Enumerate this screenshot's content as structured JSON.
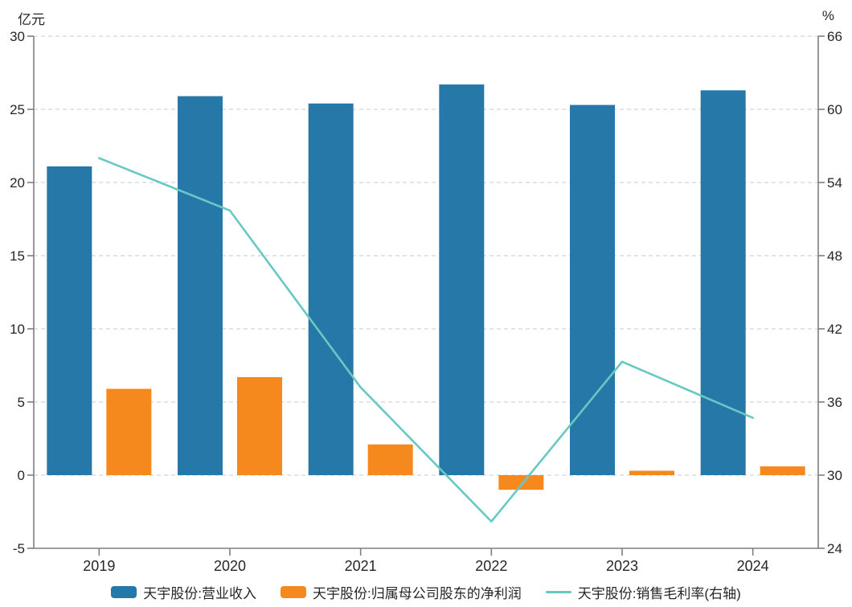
{
  "chart_data": {
    "type": "combo",
    "title": "",
    "categories": [
      "2019",
      "2020",
      "2021",
      "2022",
      "2023",
      "2024"
    ],
    "series": [
      {
        "name": "天宇股份:营业收入",
        "type": "bar",
        "axis": "left",
        "color": "#2578a8",
        "values": [
          21.1,
          25.9,
          25.4,
          26.7,
          25.3,
          26.3
        ]
      },
      {
        "name": "天宇股份:归属母公司股东的净利润",
        "type": "bar",
        "axis": "left",
        "color": "#f6891e",
        "values": [
          5.9,
          6.7,
          2.1,
          -1.0,
          0.3,
          0.6
        ]
      },
      {
        "name": "天宇股份:销售毛利率(右轴)",
        "type": "line",
        "axis": "right",
        "color": "#68c8c2",
        "values": [
          56.0,
          51.7,
          37.2,
          26.2,
          39.3,
          34.7
        ]
      }
    ],
    "left_axis": {
      "title": "亿元",
      "min": -5,
      "max": 30,
      "ticks": [
        30,
        25,
        20,
        15,
        10,
        5,
        0,
        -5
      ]
    },
    "right_axis": {
      "title": "%",
      "min": 24,
      "max": 66,
      "ticks": [
        66,
        60,
        54,
        48,
        42,
        36,
        30,
        24
      ]
    },
    "grid": true,
    "legend_position": "bottom",
    "colors": {
      "grid_line": "#dcdcdc",
      "axis_line": "#7f7f7f",
      "tick_text": "#262626"
    }
  }
}
